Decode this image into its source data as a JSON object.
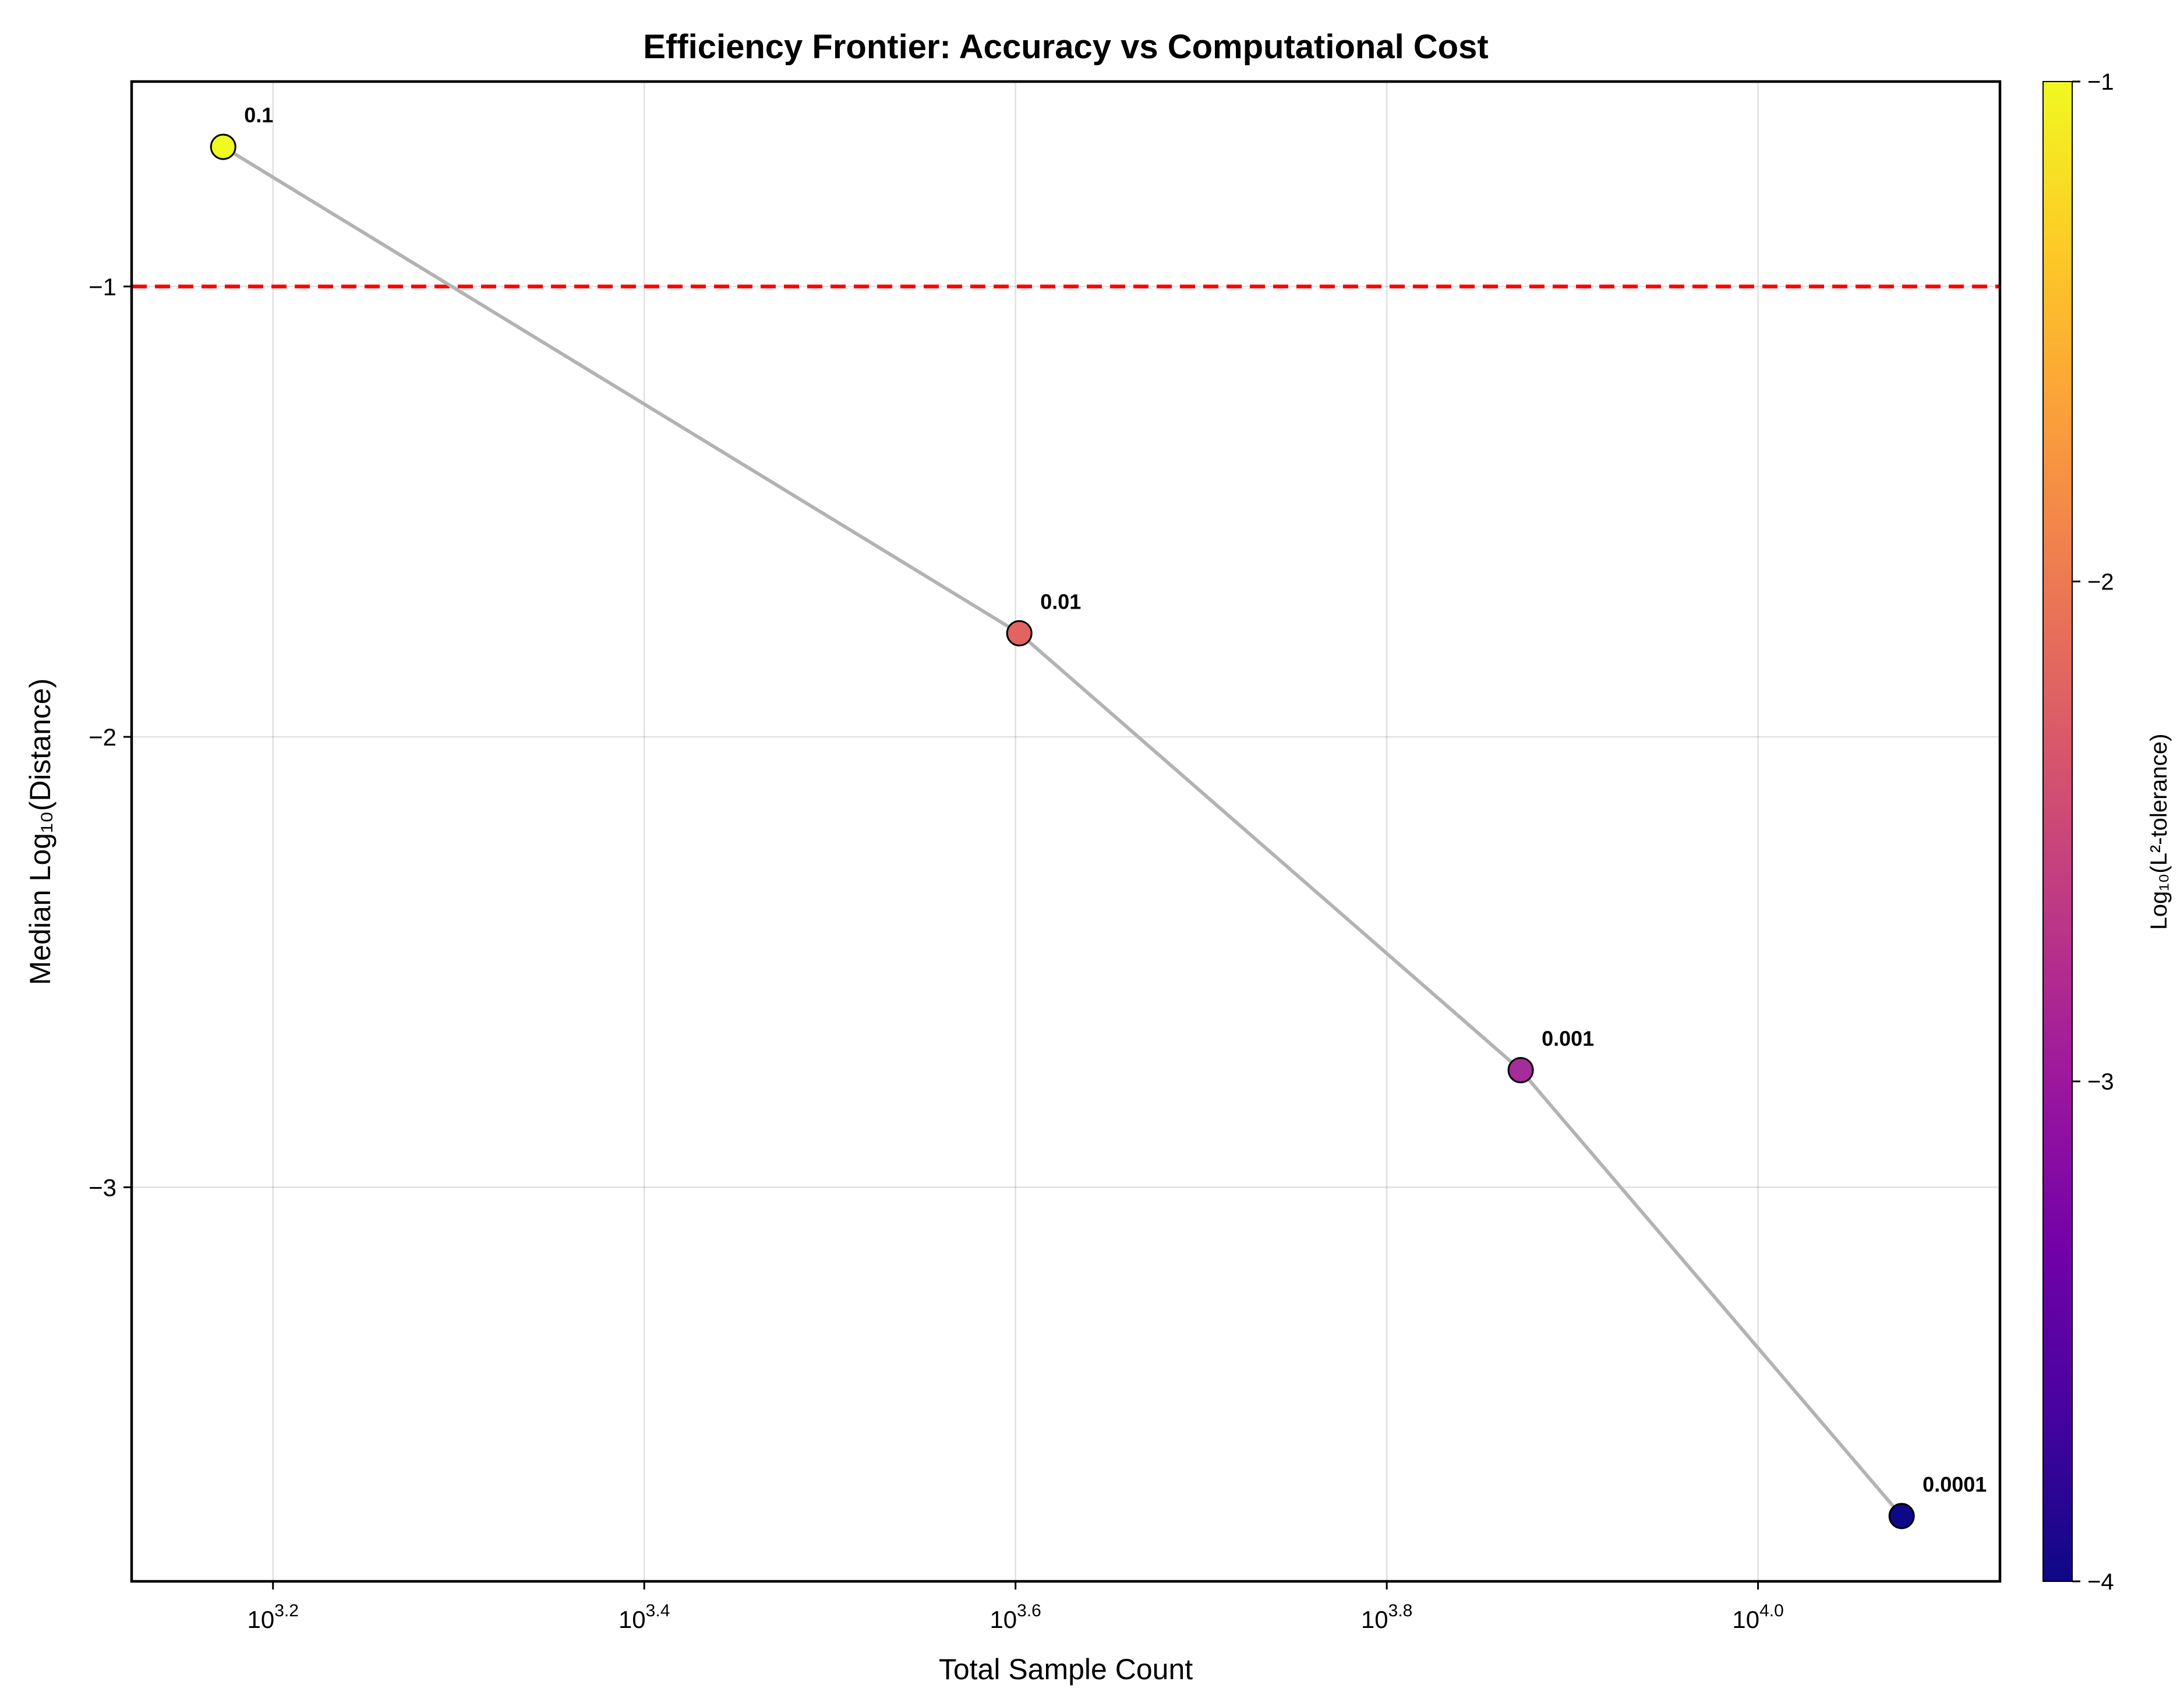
{
  "chart_data": {
    "type": "scatter",
    "title": "Efficiency Frontier: Accuracy vs Computational Cost",
    "xlabel": "Total Sample Count",
    "ylabel": "Median Log₁₀(Distance)",
    "x_scale": "log10",
    "xlim": [
      1330,
      13500
    ],
    "ylim": [
      -3.875,
      -0.545
    ],
    "x_ticks": [
      {
        "value": 1584.9,
        "base": "10",
        "exp": "3.2"
      },
      {
        "value": 2511.9,
        "base": "10",
        "exp": "3.4"
      },
      {
        "value": 3981.1,
        "base": "10",
        "exp": "3.6"
      },
      {
        "value": 6309.6,
        "base": "10",
        "exp": "3.8"
      },
      {
        "value": 10000,
        "base": "10",
        "exp": "4.0"
      }
    ],
    "y_ticks": [
      {
        "value": -1,
        "label": "−1"
      },
      {
        "value": -2,
        "label": "−2"
      },
      {
        "value": -3,
        "label": "−3"
      }
    ],
    "grid": true,
    "connector_color": "#b3b3b3",
    "reference_line": {
      "y": -1,
      "color": "#ff0000",
      "style": "dashed"
    },
    "points": [
      {
        "x": 1490,
        "y": -0.69,
        "label": "0.1",
        "color": "#f0f921"
      },
      {
        "x": 4000,
        "y": -1.77,
        "label": "0.01",
        "color": "#e16462"
      },
      {
        "x": 7450,
        "y": -2.74,
        "label": "0.001",
        "color": "#a52c9a"
      },
      {
        "x": 11950,
        "y": -3.73,
        "label": "0.0001",
        "color": "#0d0887"
      }
    ],
    "colorbar": {
      "label": "Log₁₀(L²-tolerance)",
      "range": [
        -4,
        -1
      ],
      "ticks": [
        {
          "value": -1,
          "label": "−1"
        },
        {
          "value": -2,
          "label": "−2"
        },
        {
          "value": -3,
          "label": "−3"
        },
        {
          "value": -4,
          "label": "−4"
        }
      ],
      "colormap": "plasma",
      "stops": [
        "#0d0887",
        "#46039f",
        "#7201a8",
        "#9c179e",
        "#bd3786",
        "#d8576b",
        "#ed7953",
        "#fb9f3a",
        "#fdca26",
        "#f0f921"
      ]
    }
  }
}
